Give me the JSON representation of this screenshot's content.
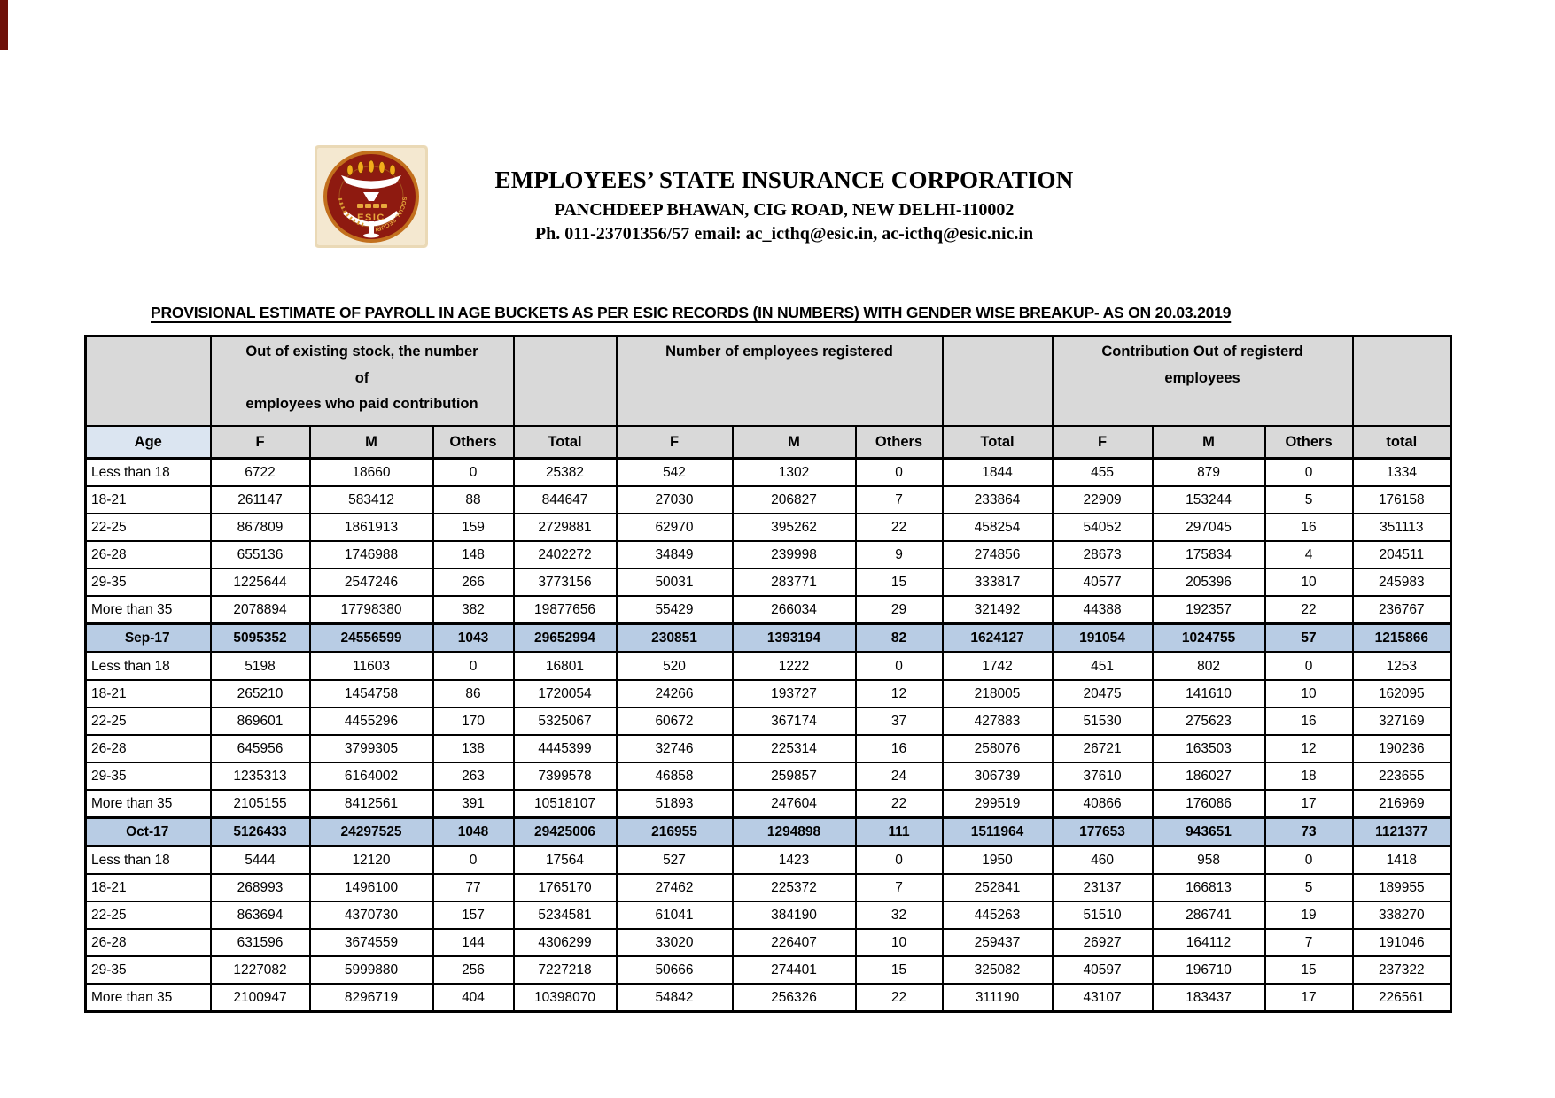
{
  "org": {
    "name": "EMPLOYEES’ STATE INSURANCE CORPORATION",
    "address": "PANCHDEEP BHAWAN, CIG ROAD, NEW DELHI-110002",
    "contact": "Ph. 011-23701356/57 email: ac_icthq@esic.in, ac-icthq@esic.nic.in",
    "logo_text": "ESIC",
    "logo_ring_text": "SOCIAL SECURITY"
  },
  "title": "PROVISIONAL ESTIMATE OF PAYROLL IN AGE BUCKETS AS PER ESIC RECORDS (IN NUMBERS) WITH GENDER WISE BREAKUP- AS ON 20.03.2019",
  "colors": {
    "header_grey": "#d9d9d9",
    "header_blue": "#dbe5f1",
    "total_row_blue": "#b8cce4",
    "logo_maroon": "#8e1a10",
    "logo_gold": "#e7a83c",
    "logo_cream": "#f4e8d0"
  },
  "table": {
    "group_headers": [
      "Out of existing stock, the number\nof\nemployees who paid contribution",
      "Number of employees registered",
      "Contribution  Out of  registerd\nemployees"
    ],
    "sub_headers": [
      "Age",
      "F",
      "M",
      "Others",
      "Total",
      "F",
      "M",
      "Others",
      "Total",
      "F",
      "M",
      "Others",
      "total"
    ],
    "rows": [
      {
        "label": "Less than 18",
        "type": "data",
        "values": [
          "6722",
          "18660",
          "0",
          "25382",
          "542",
          "1302",
          "0",
          "1844",
          "455",
          "879",
          "0",
          "1334"
        ]
      },
      {
        "label": "18-21",
        "type": "data",
        "values": [
          "261147",
          "583412",
          "88",
          "844647",
          "27030",
          "206827",
          "7",
          "233864",
          "22909",
          "153244",
          "5",
          "176158"
        ]
      },
      {
        "label": "22-25",
        "type": "data",
        "values": [
          "867809",
          "1861913",
          "159",
          "2729881",
          "62970",
          "395262",
          "22",
          "458254",
          "54052",
          "297045",
          "16",
          "351113"
        ]
      },
      {
        "label": "26-28",
        "type": "data",
        "values": [
          "655136",
          "1746988",
          "148",
          "2402272",
          "34849",
          "239998",
          "9",
          "274856",
          "28673",
          "175834",
          "4",
          "204511"
        ]
      },
      {
        "label": "29-35",
        "type": "data",
        "values": [
          "1225644",
          "2547246",
          "266",
          "3773156",
          "50031",
          "283771",
          "15",
          "333817",
          "40577",
          "205396",
          "10",
          "245983"
        ]
      },
      {
        "label": "More than 35",
        "type": "data",
        "values": [
          "2078894",
          "17798380",
          "382",
          "19877656",
          "55429",
          "266034",
          "29",
          "321492",
          "44388",
          "192357",
          "22",
          "236767"
        ]
      },
      {
        "label": "Sep-17",
        "type": "total",
        "values": [
          "5095352",
          "24556599",
          "1043",
          "29652994",
          "230851",
          "1393194",
          "82",
          "1624127",
          "191054",
          "1024755",
          "57",
          "1215866"
        ]
      },
      {
        "label": "Less than 18",
        "type": "data",
        "values": [
          "5198",
          "11603",
          "0",
          "16801",
          "520",
          "1222",
          "0",
          "1742",
          "451",
          "802",
          "0",
          "1253"
        ]
      },
      {
        "label": "18-21",
        "type": "data",
        "values": [
          "265210",
          "1454758",
          "86",
          "1720054",
          "24266",
          "193727",
          "12",
          "218005",
          "20475",
          "141610",
          "10",
          "162095"
        ]
      },
      {
        "label": "22-25",
        "type": "data",
        "values": [
          "869601",
          "4455296",
          "170",
          "5325067",
          "60672",
          "367174",
          "37",
          "427883",
          "51530",
          "275623",
          "16",
          "327169"
        ]
      },
      {
        "label": "26-28",
        "type": "data",
        "values": [
          "645956",
          "3799305",
          "138",
          "4445399",
          "32746",
          "225314",
          "16",
          "258076",
          "26721",
          "163503",
          "12",
          "190236"
        ]
      },
      {
        "label": "29-35",
        "type": "data",
        "values": [
          "1235313",
          "6164002",
          "263",
          "7399578",
          "46858",
          "259857",
          "24",
          "306739",
          "37610",
          "186027",
          "18",
          "223655"
        ]
      },
      {
        "label": "More than 35",
        "type": "data",
        "values": [
          "2105155",
          "8412561",
          "391",
          "10518107",
          "51893",
          "247604",
          "22",
          "299519",
          "40866",
          "176086",
          "17",
          "216969"
        ]
      },
      {
        "label": "Oct-17",
        "type": "total",
        "values": [
          "5126433",
          "24297525",
          "1048",
          "29425006",
          "216955",
          "1294898",
          "111",
          "1511964",
          "177653",
          "943651",
          "73",
          "1121377"
        ]
      },
      {
        "label": "Less than 18",
        "type": "data",
        "values": [
          "5444",
          "12120",
          "0",
          "17564",
          "527",
          "1423",
          "0",
          "1950",
          "460",
          "958",
          "0",
          "1418"
        ]
      },
      {
        "label": "18-21",
        "type": "data",
        "values": [
          "268993",
          "1496100",
          "77",
          "1765170",
          "27462",
          "225372",
          "7",
          "252841",
          "23137",
          "166813",
          "5",
          "189955"
        ]
      },
      {
        "label": "22-25",
        "type": "data",
        "values": [
          "863694",
          "4370730",
          "157",
          "5234581",
          "61041",
          "384190",
          "32",
          "445263",
          "51510",
          "286741",
          "19",
          "338270"
        ]
      },
      {
        "label": "26-28",
        "type": "data",
        "values": [
          "631596",
          "3674559",
          "144",
          "4306299",
          "33020",
          "226407",
          "10",
          "259437",
          "26927",
          "164112",
          "7",
          "191046"
        ]
      },
      {
        "label": "29-35",
        "type": "data",
        "values": [
          "1227082",
          "5999880",
          "256",
          "7227218",
          "50666",
          "274401",
          "15",
          "325082",
          "40597",
          "196710",
          "15",
          "237322"
        ]
      },
      {
        "label": "More than 35",
        "type": "data",
        "values": [
          "2100947",
          "8296719",
          "404",
          "10398070",
          "54842",
          "256326",
          "22",
          "311190",
          "43107",
          "183437",
          "17",
          "226561"
        ]
      }
    ]
  }
}
